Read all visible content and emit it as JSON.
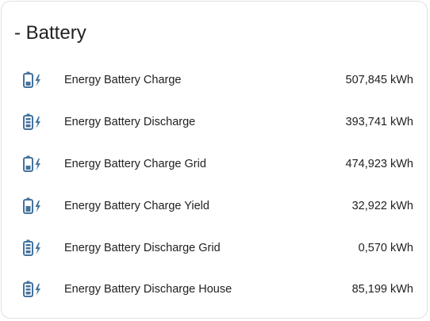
{
  "card": {
    "title": "- Battery"
  },
  "colors": {
    "icon": "#44739e",
    "text": "#212121",
    "border": "#e0e0e0"
  },
  "entities": [
    {
      "name": "Energy Battery Charge",
      "value": "507,845 kWh",
      "icon": "battery-charging-icon"
    },
    {
      "name": "Energy Battery Discharge",
      "value": "393,741 kWh",
      "icon": "battery-discharging-icon"
    },
    {
      "name": "Energy Battery Charge Grid",
      "value": "474,923 kWh",
      "icon": "battery-charging-icon"
    },
    {
      "name": "Energy Battery Charge Yield",
      "value": "32,922 kWh",
      "icon": "battery-charging-icon"
    },
    {
      "name": "Energy Battery Discharge Grid",
      "value": "0,570 kWh",
      "icon": "battery-discharging-icon"
    },
    {
      "name": "Energy Battery Discharge House",
      "value": "85,199 kWh",
      "icon": "battery-discharging-icon"
    }
  ]
}
